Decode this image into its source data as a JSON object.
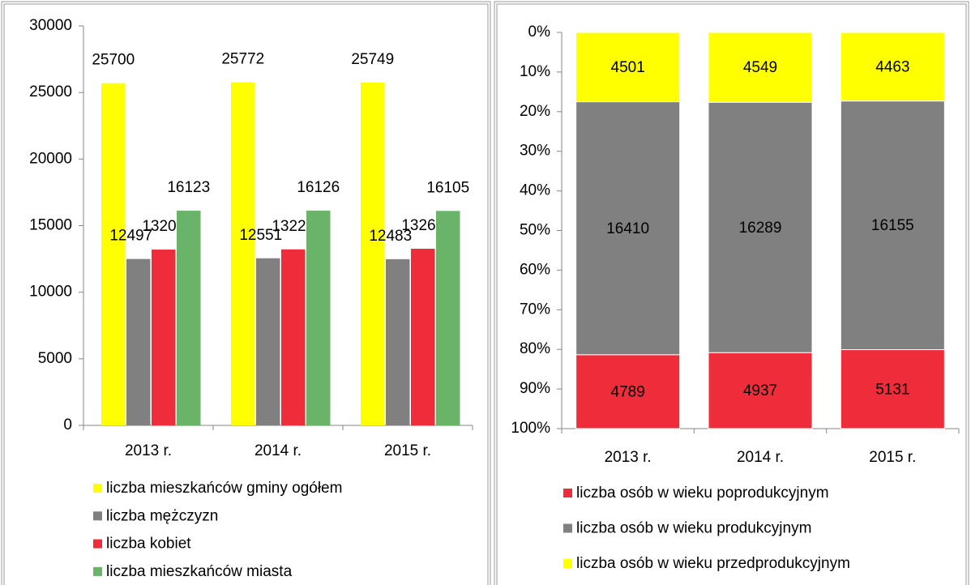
{
  "chart_data": [
    {
      "type": "bar",
      "categories": [
        "2013 r.",
        "2014 r.",
        "2015 r."
      ],
      "series": [
        {
          "name": "liczba mieszkańców gminy ogółem",
          "color": "#ffff00",
          "values": [
            25700,
            25772,
            25749
          ]
        },
        {
          "name": "liczba mężczyzn",
          "color": "#808080",
          "values": [
            12497,
            12551,
            12483
          ]
        },
        {
          "name": "liczba kobiet",
          "color": "#ee2c3a",
          "values": [
            13203,
            13221,
            13266
          ]
        },
        {
          "name": "liczba mieszkańców miasta",
          "color": "#6ab46a",
          "values": [
            16123,
            16126,
            16105
          ]
        }
      ],
      "ylim": [
        0,
        30000
      ],
      "yticks": [
        0,
        5000,
        10000,
        15000,
        20000,
        25000,
        30000
      ],
      "legend": "bottom"
    },
    {
      "type": "stacked_percent_bar",
      "categories": [
        "2013 r.",
        "2014 r.",
        "2015 r."
      ],
      "series": [
        {
          "name": "liczba osób w wieku poprodukcyjnym",
          "color": "#ee2c3a",
          "values": [
            4789,
            4937,
            5131
          ]
        },
        {
          "name": "liczba osób w wieku produkcyjnym",
          "color": "#808080",
          "values": [
            16410,
            16289,
            16155
          ]
        },
        {
          "name": "liczba osób w wieku przedprodukcyjnym",
          "color": "#ffff00",
          "values": [
            4501,
            4549,
            4463
          ]
        }
      ],
      "ylim": [
        0,
        100
      ],
      "y_inverted": true,
      "yticks": [
        {
          "value": 0,
          "label": "0%"
        },
        {
          "value": 10,
          "label": "10%"
        },
        {
          "value": 20,
          "label": "20%"
        },
        {
          "value": 30,
          "label": "30%"
        },
        {
          "value": 40,
          "label": "40%"
        },
        {
          "value": 50,
          "label": "50%"
        },
        {
          "value": 60,
          "label": "60%"
        },
        {
          "value": 70,
          "label": "70%"
        },
        {
          "value": 80,
          "label": "80%"
        },
        {
          "value": 90,
          "label": "90%"
        },
        {
          "value": 100,
          "label": "100%"
        }
      ],
      "legend": "bottom"
    }
  ]
}
